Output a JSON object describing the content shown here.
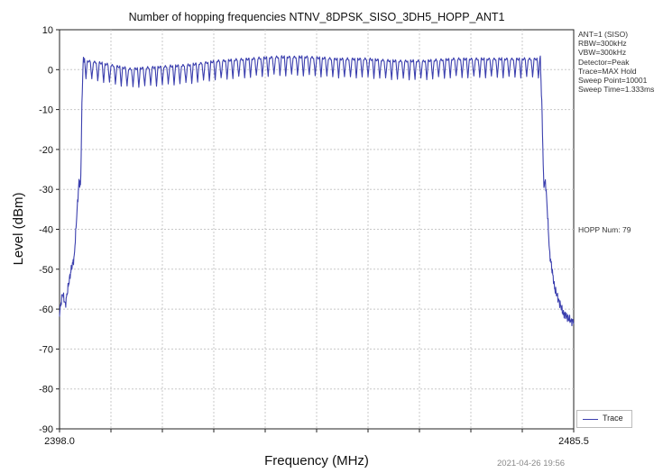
{
  "chart_data": {
    "type": "line",
    "title": "Number of hopping frequencies NTNV_8DPSK_SISO_3DH5_HOPP_ANT1",
    "xlabel": "Frequency (MHz)",
    "ylabel": "Level (dBm)",
    "xlim": [
      2398.0,
      2485.5
    ],
    "ylim": [
      -90,
      10
    ],
    "x_tick_labels": [
      "2398.0",
      "2485.5"
    ],
    "y_ticks": [
      10,
      0,
      -10,
      -20,
      -30,
      -40,
      -50,
      -60,
      -70,
      -80,
      -90
    ],
    "grid": true,
    "legend_position": "bottom-right",
    "series": [
      {
        "name": "Trace",
        "color": "#3b3fae",
        "x": [
          2398.0,
          2398.5,
          2399.0,
          2399.5,
          2400.0,
          2400.5,
          2401.0,
          2401.3,
          2401.6,
          2401.8,
          2402.0,
          2402.3,
          2402.8,
          2405.0,
          2410.0,
          2415.0,
          2420.0,
          2425.0,
          2430.0,
          2435.0,
          2440.0,
          2445.0,
          2450.0,
          2455.0,
          2460.0,
          2465.0,
          2470.0,
          2475.0,
          2478.0,
          2479.8,
          2480.1,
          2480.4,
          2480.7,
          2481.0,
          2481.4,
          2481.8,
          2482.3,
          2483.0,
          2483.7,
          2484.4,
          2485.0,
          2485.5
        ],
        "values": [
          -61,
          -56,
          -59,
          -54,
          -50,
          -47,
          -35,
          -28,
          -29,
          -10,
          2,
          3,
          2.5,
          2,
          0.5,
          1,
          1.5,
          2.5,
          3,
          3.5,
          3.5,
          3,
          3,
          2.5,
          2.5,
          3,
          3,
          3,
          3,
          3,
          -10,
          -29,
          -28,
          -35,
          -46,
          -50,
          -55,
          -58,
          -61,
          -62,
          -63,
          -63
        ]
      }
    ]
  },
  "info_lines": [
    "ANT=1 (SISO)",
    "RBW=300kHz",
    "VBW=300kHz",
    "Detector=Peak",
    "Trace=MAX Hold",
    "Sweep Point=10001",
    "Sweep Time=1.333ms"
  ],
  "hopp_num": "HOPP Num: 79",
  "legend_label": "Trace",
  "timestamp": "2021-04-26 19:56"
}
